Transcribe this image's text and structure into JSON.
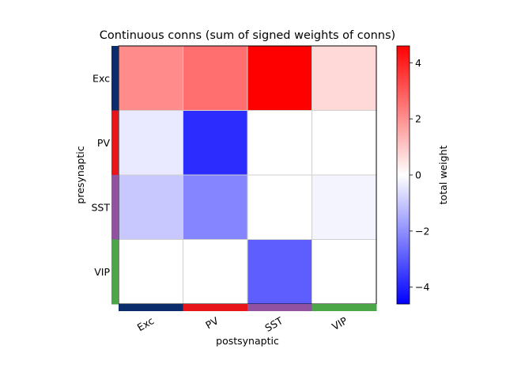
{
  "chart_data": {
    "type": "heatmap",
    "title": "Continuous conns (sum of signed weights of conns)",
    "xlabel": "postsynaptic",
    "ylabel": "presynaptic",
    "x_categories": [
      "Exc",
      "PV",
      "SST",
      "VIP"
    ],
    "y_categories": [
      "Exc",
      "PV",
      "SST",
      "VIP"
    ],
    "values": [
      [
        2.1,
        2.6,
        4.6,
        0.7
      ],
      [
        -0.4,
        -3.8,
        0.0,
        0.0
      ],
      [
        -1.0,
        -2.2,
        0.0,
        -0.2
      ],
      [
        0.0,
        0.0,
        -2.9,
        0.0
      ]
    ],
    "category_colors": {
      "Exc": "#0b2d6b",
      "PV": "#e8161b",
      "SST": "#9152a2",
      "VIP": "#4aa646"
    },
    "colormap": "bwr",
    "colorbar": {
      "label": "total weight",
      "vmin": -4.6,
      "vmax": 4.6,
      "ticks": [
        -4,
        -2,
        0,
        2,
        4
      ],
      "tick_labels": [
        "−4",
        "−2",
        "0",
        "2",
        "4"
      ]
    },
    "grid": true
  }
}
